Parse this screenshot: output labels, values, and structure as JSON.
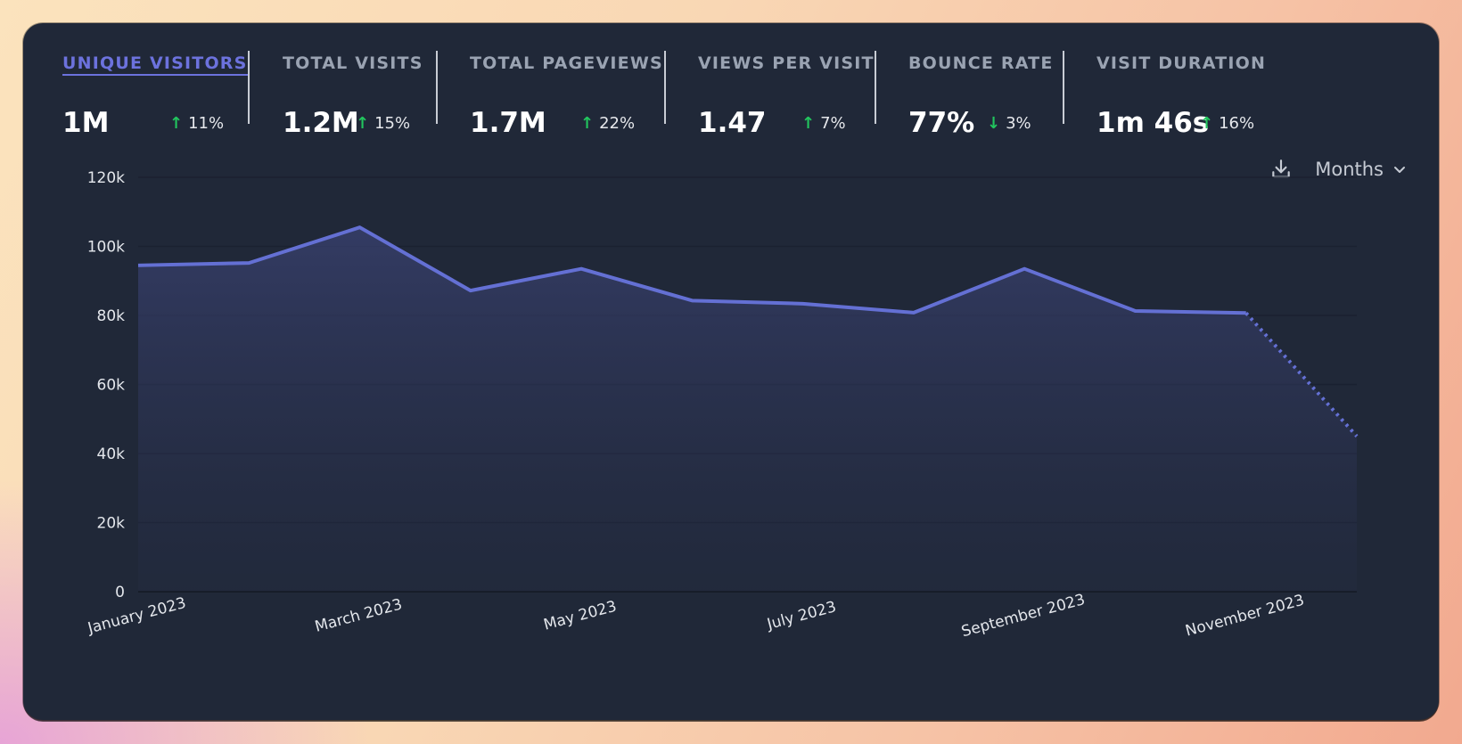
{
  "stats": [
    {
      "label": "UNIQUE VISITORS",
      "value": "1M",
      "change": "11%",
      "direction": "up",
      "active": true
    },
    {
      "label": "TOTAL VISITS",
      "value": "1.2M",
      "change": "15%",
      "direction": "up",
      "active": false
    },
    {
      "label": "TOTAL PAGEVIEWS",
      "value": "1.7M",
      "change": "22%",
      "direction": "up",
      "active": false
    },
    {
      "label": "VIEWS PER VISIT",
      "value": "1.47",
      "change": "7%",
      "direction": "up",
      "active": false
    },
    {
      "label": "BOUNCE RATE",
      "value": "77%",
      "change": "3%",
      "direction": "down",
      "active": false
    },
    {
      "label": "VISIT DURATION",
      "value": "1m 46s",
      "change": "16%",
      "direction": "up",
      "active": false
    }
  ],
  "toolbar": {
    "download_icon": "download-icon",
    "period_label": "Months",
    "chevron_icon": "chevron-down-icon"
  },
  "colors": {
    "accent": "#6c72dd",
    "line": "#6470d4",
    "positive": "#22c55e",
    "card_bg": "#202838"
  },
  "chart_data": {
    "type": "area",
    "x": [
      "January 2023",
      "February 2023",
      "March 2023",
      "April 2023",
      "May 2023",
      "June 2023",
      "July 2023",
      "August 2023",
      "September 2023",
      "October 2023",
      "November 2023",
      "December 2023"
    ],
    "x_tick_labels": [
      "January 2023",
      "March 2023",
      "May 2023",
      "July 2023",
      "September 2023",
      "November 2023"
    ],
    "series": [
      {
        "values": [
          94500,
          95200,
          105500,
          87200,
          93500,
          84300,
          83400,
          80800,
          93500,
          81300,
          80700,
          45000
        ]
      }
    ],
    "incomplete_last_point": true,
    "ylim": [
      0,
      120000
    ],
    "y_ticks": [
      0,
      20000,
      40000,
      60000,
      80000,
      100000,
      120000
    ],
    "y_tick_labels": [
      "0",
      "20k",
      "40k",
      "60k",
      "80k",
      "100k",
      "120k"
    ],
    "grid": true,
    "xlabel": "",
    "ylabel": ""
  }
}
